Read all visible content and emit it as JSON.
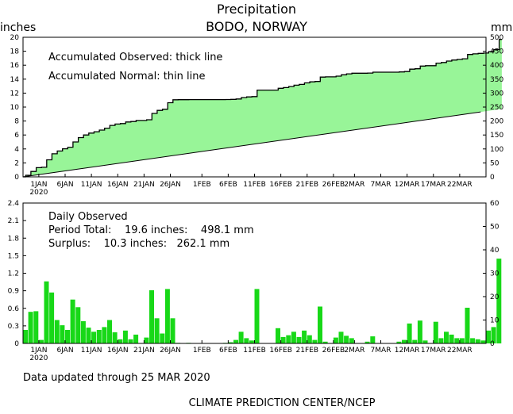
{
  "title": "Precipitation",
  "subtitle": "BODO, NORWAY",
  "left_unit": "inches",
  "right_unit": "mm",
  "top_legend": [
    "Accumulated Observed: thick line",
    "Accumulated Normal: thin line"
  ],
  "bottom_legend": {
    "heading": "Daily Observed",
    "line1": "Period Total:    19.6 inches:    498.1 mm",
    "line2": "Surplus:    10.3 inches:   262.1 mm"
  },
  "footer_update": "Data updated through 25 MAR 2020",
  "footer_credit": "CLIMATE PREDICTION CENTER/NCEP",
  "year_label": "2020",
  "colors": {
    "fill": "#98f598",
    "bar": "#18d818",
    "line": "#000000"
  },
  "chart_data": [
    {
      "type": "area",
      "title": "Precipitation",
      "ylabel": "inches",
      "y2label": "mm",
      "ylim": [
        0,
        20
      ],
      "y2lim": [
        0,
        500
      ],
      "y_ticks": [
        0,
        2,
        4,
        6,
        8,
        10,
        12,
        14,
        16,
        18,
        20
      ],
      "y2_ticks": [
        0,
        50,
        100,
        150,
        200,
        250,
        300,
        350,
        400,
        450,
        500
      ],
      "xlim": [
        -3,
        85
      ],
      "x_ticks": [
        {
          "day": 0,
          "label": "1JAN"
        },
        {
          "day": 5,
          "label": "6JAN"
        },
        {
          "day": 10,
          "label": "11JAN"
        },
        {
          "day": 15,
          "label": "16JAN"
        },
        {
          "day": 20,
          "label": "21JAN"
        },
        {
          "day": 25,
          "label": "26JAN"
        },
        {
          "day": 31,
          "label": "1FEB"
        },
        {
          "day": 36,
          "label": "6FEB"
        },
        {
          "day": 41,
          "label": "11FEB"
        },
        {
          "day": 46,
          "label": "16FEB"
        },
        {
          "day": 51,
          "label": "21FEB"
        },
        {
          "day": 56,
          "label": "26FEB"
        },
        {
          "day": 60,
          "label": "2MAR"
        },
        {
          "day": 65,
          "label": "7MAR"
        },
        {
          "day": 70,
          "label": "12MAR"
        },
        {
          "day": 75,
          "label": "17MAR"
        },
        {
          "day": 80,
          "label": "22MAR"
        }
      ],
      "normal_start": [
        -3,
        0.0
      ],
      "normal_end": [
        84,
        9.3
      ],
      "observed_start_value": 0.0
    },
    {
      "type": "bar",
      "heading": "Daily Observed",
      "ylim": [
        0,
        2.4
      ],
      "y2lim": [
        0,
        60
      ],
      "y_ticks": [
        0,
        0.3,
        0.6,
        0.9,
        1.2,
        1.5,
        1.8,
        2.1,
        2.4
      ],
      "y2_ticks": [
        0,
        10,
        20,
        30,
        40,
        50,
        60
      ],
      "start_day": -3,
      "values": [
        0.23,
        0.54,
        0.55,
        0.06,
        1.06,
        0.87,
        0.4,
        0.31,
        0.23,
        0.75,
        0.62,
        0.38,
        0.27,
        0.2,
        0.23,
        0.28,
        0.4,
        0.19,
        0.07,
        0.22,
        0.07,
        0.15,
        0,
        0.1,
        0.91,
        0.43,
        0.17,
        0.93,
        0.43,
        0.01,
        0,
        0.01,
        0,
        0,
        0,
        0,
        0,
        0,
        0.01,
        0.02,
        0.06,
        0.2,
        0.09,
        0.05,
        0.93,
        0,
        0,
        0,
        0.26,
        0.11,
        0.14,
        0.2,
        0.11,
        0.22,
        0.14,
        0.06,
        0.63,
        0.03,
        0,
        0.1,
        0.2,
        0.13,
        0.09,
        0,
        0,
        0.03,
        0.12,
        0,
        0,
        0,
        0,
        0.03,
        0.06,
        0.34,
        0.06,
        0.39,
        0.05,
        0,
        0.37,
        0.09,
        0.2,
        0.15,
        0.09,
        0.09,
        0.61,
        0.09,
        0.07,
        0.05,
        0.22,
        0.28,
        1.45
      ]
    }
  ]
}
